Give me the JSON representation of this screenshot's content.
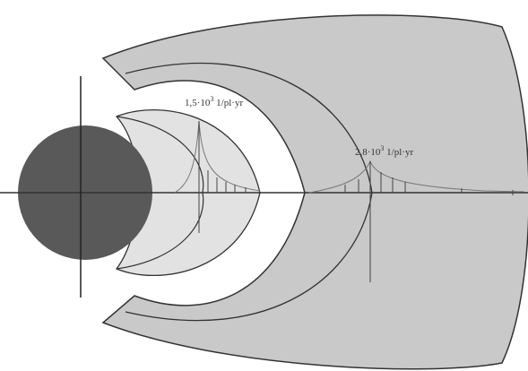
{
  "labels": [
    {
      "base": "1,5·10",
      "exp": "3",
      "unit": " 1/pl·yr"
    },
    {
      "base": "2,8·10",
      "exp": "3",
      "unit": " 1/pl·yr"
    }
  ]
}
